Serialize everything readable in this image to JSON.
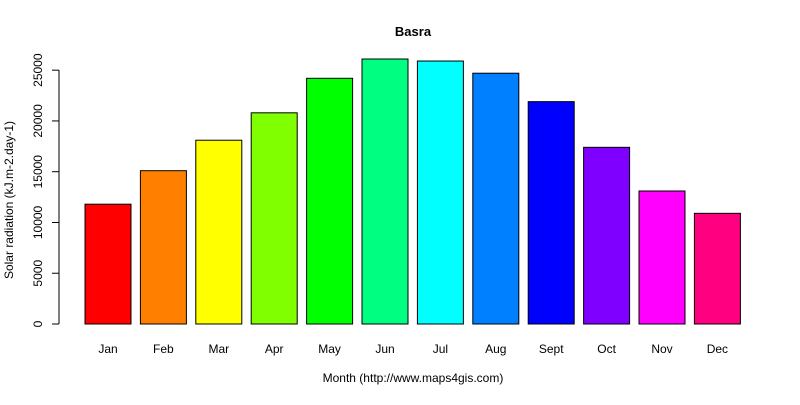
{
  "chart_data": {
    "type": "bar",
    "title": "Basra",
    "xlabel": "Month (http://www.maps4gis.com)",
    "ylabel": "Solar radiation (kJ.m-2.day-1)",
    "categories": [
      "Jan",
      "Feb",
      "Mar",
      "Apr",
      "May",
      "Jun",
      "Jul",
      "Aug",
      "Sept",
      "Oct",
      "Nov",
      "Dec"
    ],
    "values": [
      11800,
      15100,
      18100,
      20800,
      24200,
      26100,
      25900,
      24700,
      21900,
      17400,
      13100,
      10900
    ],
    "colors": [
      "#ff0000",
      "#ff8000",
      "#ffff00",
      "#80ff00",
      "#00ff00",
      "#00ff80",
      "#00ffff",
      "#0080ff",
      "#0000ff",
      "#8000ff",
      "#ff00ff",
      "#ff0080"
    ],
    "ylim": [
      0,
      26100
    ],
    "yticks": [
      0,
      5000,
      10000,
      15000,
      20000,
      25000
    ],
    "grid": false,
    "legend": "none"
  }
}
